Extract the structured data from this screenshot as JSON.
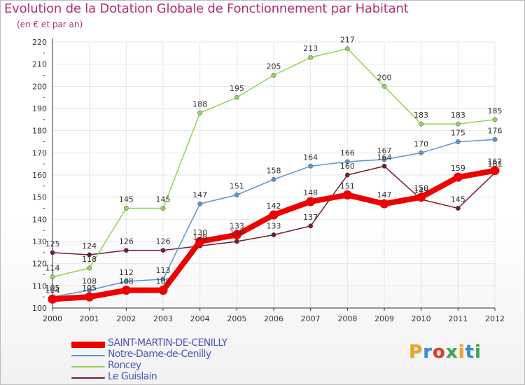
{
  "title": "Evolution de la Dotation Globale de Fonctionnement par Habitant",
  "subtitle": "(en € et par an)",
  "logo": {
    "text": "Proxiti",
    "colors": [
      "#f0a418",
      "#2f8fd6",
      "#e03b2a",
      "#3aa84b",
      "#f0a418",
      "#2f8fd6",
      "#3aa84b"
    ]
  },
  "colors": {
    "title": "#b22d6e",
    "axis": "#333333",
    "grid": "#e6e6e6",
    "tick_minor": "#cc2b4a"
  },
  "chart_data": {
    "type": "line",
    "title": "Evolution de la Dotation Globale de Fonctionnement par Habitant",
    "ylabel": "(en € et par an)",
    "xlabel": "",
    "x": [
      2000,
      2001,
      2002,
      2003,
      2004,
      2005,
      2006,
      2007,
      2008,
      2009,
      2010,
      2011,
      2012
    ],
    "ylim": [
      100,
      220
    ],
    "yticks": [
      100,
      110,
      120,
      130,
      140,
      150,
      160,
      170,
      180,
      190,
      200,
      210,
      220
    ],
    "grid": true,
    "series": [
      {
        "name": "Le Guislain",
        "color": "#6e1f2a",
        "values": [
          125,
          124,
          126,
          126,
          128,
          130,
          133,
          137,
          160,
          164,
          149,
          145,
          161
        ]
      },
      {
        "name": "Roncey",
        "color": "#8fd35a",
        "values": [
          114,
          118,
          145,
          145,
          188,
          195,
          205,
          213,
          217,
          200,
          183,
          183,
          185
        ]
      },
      {
        "name": "Notre-Dame-de-Cenilly",
        "color": "#5b95cc",
        "values": [
          105,
          108,
          112,
          113,
          147,
          151,
          158,
          164,
          166,
          167,
          170,
          175,
          176
        ]
      },
      {
        "name": "SAINT-MARTIN-DE-CENILLY",
        "color": "#ee0000",
        "values": [
          104,
          105,
          108,
          108,
          130,
          133,
          142,
          148,
          151,
          147,
          150,
          159,
          162
        ]
      }
    ],
    "legend": {
      "position": "bottom-left",
      "order": [
        "SAINT-MARTIN-DE-CENILLY",
        "Notre-Dame-de-Cenilly",
        "Roncey",
        "Le Guislain"
      ]
    }
  }
}
